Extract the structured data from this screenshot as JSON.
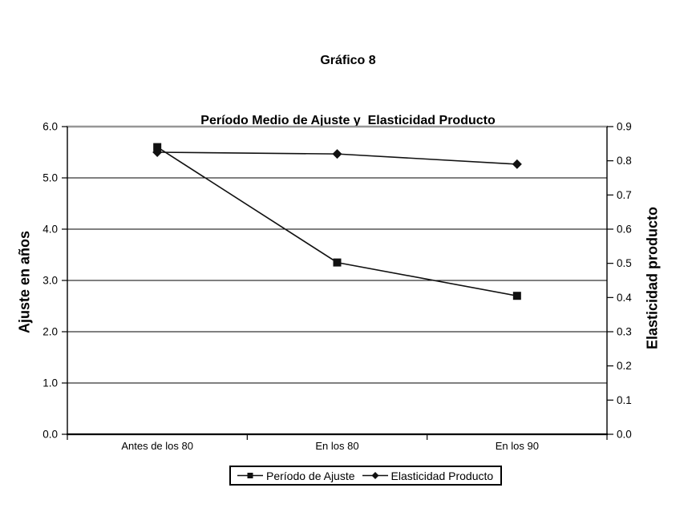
{
  "chart_data": {
    "type": "line",
    "title": "Gráfico 8",
    "subtitle": "Período Medio de Ajuste y  Elasticidad Producto",
    "categories": [
      "Antes de los 80",
      "En los 80",
      "En los 90"
    ],
    "series": [
      {
        "name": "Período de Ajuste",
        "marker": "square",
        "axis": "left",
        "values": [
          5.6,
          3.35,
          2.7
        ]
      },
      {
        "name": "Elasticidad Producto",
        "marker": "diamond",
        "axis": "right",
        "values": [
          0.825,
          0.82,
          0.79
        ]
      }
    ],
    "left_axis": {
      "label": "Ajuste en años",
      "min": 0.0,
      "max": 6.0,
      "step": 1.0,
      "decimals": 1
    },
    "right_axis": {
      "label": "Elasticidad producto",
      "min": 0.0,
      "max": 0.9,
      "step": 0.1,
      "decimals": 1
    },
    "grid": true,
    "legend_position": "bottom",
    "colors": {
      "series": "#111111",
      "gridline": "#000000",
      "plot_top_border": "#969696",
      "axis": "#000000",
      "text": "#000000",
      "background": "#ffffff"
    }
  }
}
